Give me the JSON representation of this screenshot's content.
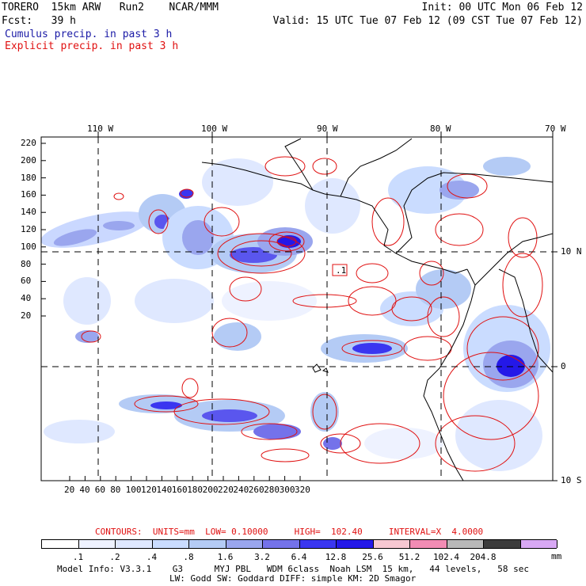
{
  "header": {
    "line1_left": "TORERO  15km ARW   Run2    NCAR/MMM",
    "line1_right": "Init: 00 UTC Mon 06 Feb 12",
    "line2_left": "Fcst:   39 h",
    "line2_right": "Valid: 15 UTC Tue 07 Feb 12 (09 CST Tue 07 Feb 12)",
    "legend_cumulus": "Cumulus precip. in past 3 h",
    "legend_explicit": "Explicit precip. in past 3 h",
    "legend_cumulus_color": "#1a1aa6",
    "legend_explicit_color": "#e01010"
  },
  "axes": {
    "top_lon_labels": [
      "110 W",
      "100 W",
      "90 W",
      "80 W",
      "70 W"
    ],
    "right_lat_labels": [
      "10 N",
      "0",
      "10 S"
    ],
    "left_y_ticks": [
      "220",
      "200",
      "180",
      "160",
      "140",
      "120",
      "100",
      "80",
      "60",
      "40",
      "20"
    ],
    "bottom_x_ticks": [
      "20",
      "40",
      "60",
      "80",
      "100",
      "120",
      "140",
      "160",
      "180",
      "200",
      "220",
      "240",
      "260",
      "280",
      "300",
      "320"
    ]
  },
  "map_annotation": ".1",
  "contours_line": {
    "label": "CONTOURS:  UNITS=mm  LOW= 0.10000     HIGH=  102.40     INTERVAL=X  4.0000",
    "color": "#e01010"
  },
  "colorbar": {
    "labels": [
      ".1",
      ".2",
      ".4",
      ".8",
      "1.6",
      "3.2",
      "6.4",
      "12.8",
      "25.6",
      "51.2",
      "102.4",
      "204.8"
    ],
    "unit": "mm",
    "colors": [
      "#ffffff",
      "#eef2ff",
      "#dfe8ff",
      "#cadcff",
      "#b4cbf5",
      "#9aa6ee",
      "#7472ea",
      "#3a36f0",
      "#2418e8",
      "#f7c8d2",
      "#f28cb4",
      "#b8b8b8",
      "#3c3c3c",
      "#d8a8f4"
    ]
  },
  "footer": {
    "line1": "Model Info: V3.3.1    G3      MYJ PBL   WDM 6class  Noah LSM  15 km,   44 levels,   58 sec",
    "line2": "LW: Godd SW: Goddard DIFF: simple KM: 2D Smagor"
  }
}
